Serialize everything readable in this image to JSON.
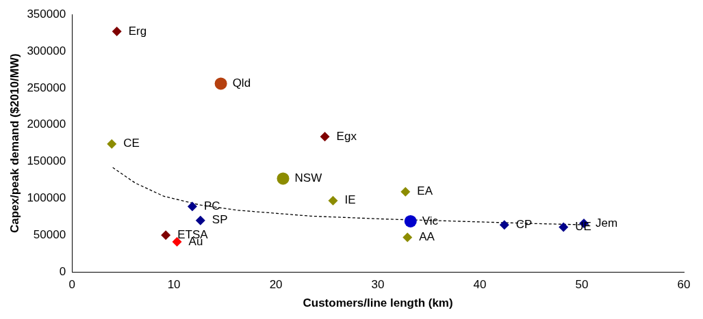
{
  "chart_data": {
    "type": "scatter",
    "xlabel": "Customers/line length (km)",
    "ylabel": "Capex/peak demand ($2010/MW)",
    "xlim": [
      0,
      60
    ],
    "xticks": [
      0,
      10,
      20,
      30,
      40,
      50,
      60
    ],
    "ylim": [
      0,
      350000
    ],
    "yticks": [
      0,
      50000,
      100000,
      150000,
      200000,
      250000,
      300000,
      350000
    ],
    "grid": false,
    "legend": false,
    "marker": "diamond",
    "series": [
      {
        "name": "Erg",
        "color": "#7f0000",
        "x": [
          4.4
        ],
        "values": [
          327000
        ]
      },
      {
        "name": "Qld",
        "color": "#b5400f",
        "marker": "circle",
        "x": [
          14.6
        ],
        "values": [
          256000
        ]
      },
      {
        "name": "CE",
        "color": "#8c8c00",
        "x": [
          3.9
        ],
        "values": [
          174000
        ]
      },
      {
        "name": "Egx",
        "color": "#7f0000",
        "x": [
          24.8
        ],
        "values": [
          184000
        ]
      },
      {
        "name": "NSW",
        "color": "#8c8c00",
        "marker": "circle",
        "x": [
          20.7
        ],
        "values": [
          127000
        ]
      },
      {
        "name": "IE",
        "color": "#8c8c00",
        "x": [
          25.6
        ],
        "values": [
          97000
        ]
      },
      {
        "name": "EA",
        "color": "#8c8c00",
        "x": [
          32.7
        ],
        "values": [
          109000
        ]
      },
      {
        "name": "PC",
        "color": "#00008b",
        "x": [
          11.8
        ],
        "values": [
          89000
        ]
      },
      {
        "name": "SP",
        "color": "#00008b",
        "x": [
          12.6
        ],
        "values": [
          70000
        ]
      },
      {
        "name": "Vic",
        "color": "#0000cc",
        "marker": "circle",
        "x": [
          33.2
        ],
        "values": [
          69000
        ]
      },
      {
        "name": "CP",
        "color": "#00008b",
        "x": [
          42.4
        ],
        "values": [
          64000
        ]
      },
      {
        "name": "UE",
        "color": "#00008b",
        "x": [
          48.2
        ],
        "values": [
          61000
        ]
      },
      {
        "name": "Jem",
        "color": "#00008b",
        "x": [
          50.2
        ],
        "values": [
          66000
        ]
      },
      {
        "name": "ETSA",
        "color": "#7f0000",
        "x": [
          9.2
        ],
        "values": [
          50000
        ]
      },
      {
        "name": "Au",
        "color": "#ff0000",
        "x": [
          10.3
        ],
        "values": [
          41000
        ]
      },
      {
        "name": "AA",
        "color": "#8c8c00",
        "x": [
          32.9
        ],
        "values": [
          47000
        ]
      },
      {
        "type": "line",
        "color": "#000000",
        "line_style": "dashed",
        "marker": "none",
        "x": [
          4,
          6.2,
          9,
          12.6,
          16.2,
          23.4,
          30.6,
          37.8,
          44.9,
          50.7
        ],
        "values": [
          142000,
          121000,
          103000,
          91000,
          84000,
          76000,
          72000,
          69000,
          66000,
          64000
        ]
      }
    ]
  }
}
